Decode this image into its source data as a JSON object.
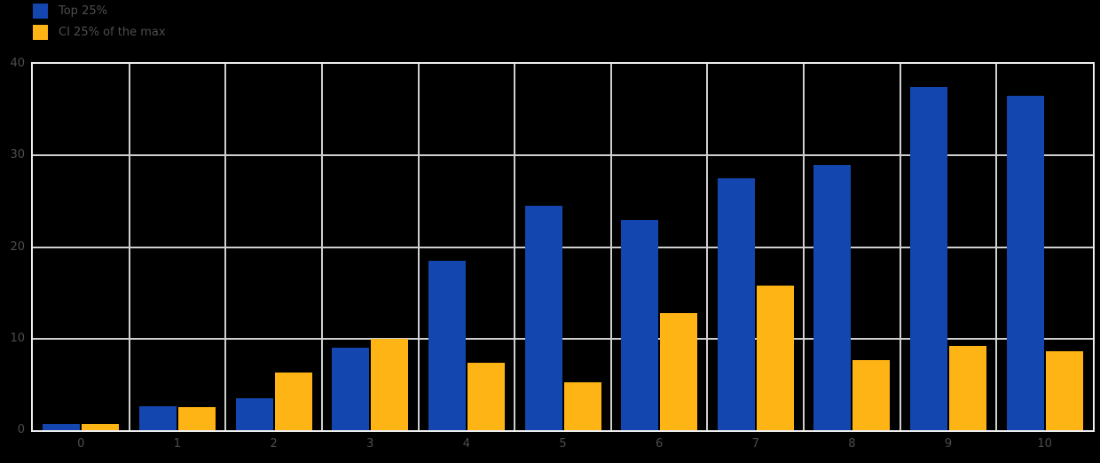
{
  "colors": {
    "background": "#000000",
    "blue": "#1346ae",
    "yellow": "#ffb415",
    "grid": "#cfcfcf",
    "plot_border": "#ededed",
    "axis_text": "#4d4d4d"
  },
  "chart_data": {
    "type": "bar",
    "title": "",
    "xlabel": "",
    "ylabel": "",
    "categories": [
      "0",
      "1",
      "2",
      "3",
      "4",
      "5",
      "6",
      "7",
      "8",
      "9",
      "10"
    ],
    "series": [
      {
        "name": "Top 25%",
        "color": "#1346ae",
        "values": [
          0.7,
          2.6,
          3.5,
          9,
          18.5,
          24.5,
          23,
          27.5,
          29,
          37.5,
          36.5
        ]
      },
      {
        "name": "CI 25% of the max",
        "color": "#ffb415",
        "values": [
          0.7,
          2.5,
          6.3,
          10,
          7.4,
          5.2,
          12.8,
          15.8,
          7.7,
          9.2,
          8.6
        ]
      }
    ],
    "ylim": [
      0,
      40
    ],
    "yticks": [
      0,
      10,
      20,
      30,
      40
    ],
    "grid": true,
    "legend_position": "top-left"
  }
}
